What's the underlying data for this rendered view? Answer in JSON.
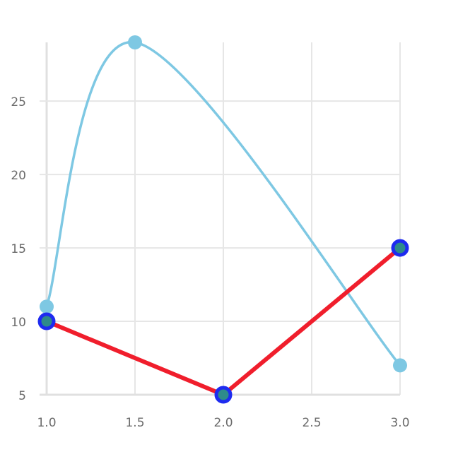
{
  "chart_data": {
    "type": "line",
    "xlim": [
      1.0,
      3.0
    ],
    "ylim": [
      5,
      29
    ],
    "x_ticks": [
      1.0,
      1.5,
      2.0,
      2.5,
      3.0
    ],
    "x_tick_labels": [
      "1.0",
      "1.5",
      "2.0",
      "2.5",
      "3.0"
    ],
    "y_ticks": [
      5,
      10,
      15,
      20,
      25
    ],
    "y_tick_labels": [
      "5",
      "10",
      "15",
      "20",
      "25"
    ],
    "grid": true,
    "series": [
      {
        "style": "smooth",
        "color": "#7ec8e3",
        "marker_color": "#7ec8e3",
        "points": [
          {
            "x": 1.0,
            "y": 11
          },
          {
            "x": 1.5,
            "y": 29
          },
          {
            "x": 3.0,
            "y": 7
          }
        ]
      },
      {
        "style": "straight",
        "color": "#f01e2c",
        "marker_color": "#2e8b8b",
        "marker_stroke": "#1e2bf0",
        "points": [
          {
            "x": 1.0,
            "y": 10
          },
          {
            "x": 2.0,
            "y": 5
          },
          {
            "x": 3.0,
            "y": 15
          }
        ]
      }
    ]
  }
}
